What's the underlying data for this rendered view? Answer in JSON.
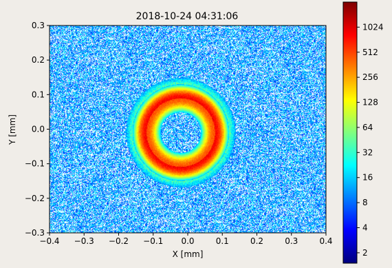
{
  "chart_data": {
    "type": "heatmap",
    "title": "2018-10-24 04:31:06",
    "xlabel": "X [mm]",
    "ylabel": "Y [mm]",
    "xlim": [
      -0.4,
      0.4
    ],
    "ylim": [
      -0.3,
      0.3
    ],
    "x_ticks": [
      -0.4,
      -0.3,
      -0.2,
      -0.1,
      0.0,
      0.1,
      0.2,
      0.3,
      0.4
    ],
    "x_tick_labels": [
      "−0.4",
      "−0.3",
      "−0.2",
      "−0.1",
      "0.0",
      "0.1",
      "0.2",
      "0.3",
      "0.4"
    ],
    "y_ticks": [
      -0.3,
      -0.2,
      -0.1,
      0.0,
      0.1,
      0.2,
      0.3
    ],
    "y_tick_labels": [
      "−0.3",
      "−0.2",
      "−0.1",
      "0.0",
      "0.1",
      "0.2",
      "0.3"
    ],
    "colorbar": {
      "scale": "log2",
      "range": [
        1.5,
        2048
      ],
      "ticks": [
        2,
        4,
        8,
        16,
        32,
        64,
        128,
        256,
        512,
        1024
      ],
      "tick_labels": [
        "2",
        "4",
        "8",
        "16",
        "32",
        "64",
        "128",
        "256",
        "512",
        "1024"
      ],
      "colormap": "jet"
    },
    "features": {
      "ring_center": [
        -0.02,
        -0.01
      ],
      "ring_inner_radius": 0.058,
      "ring_outer_radius": 0.14,
      "ring_peak_counts": 700,
      "background_counts": 12
    },
    "grid": false
  }
}
